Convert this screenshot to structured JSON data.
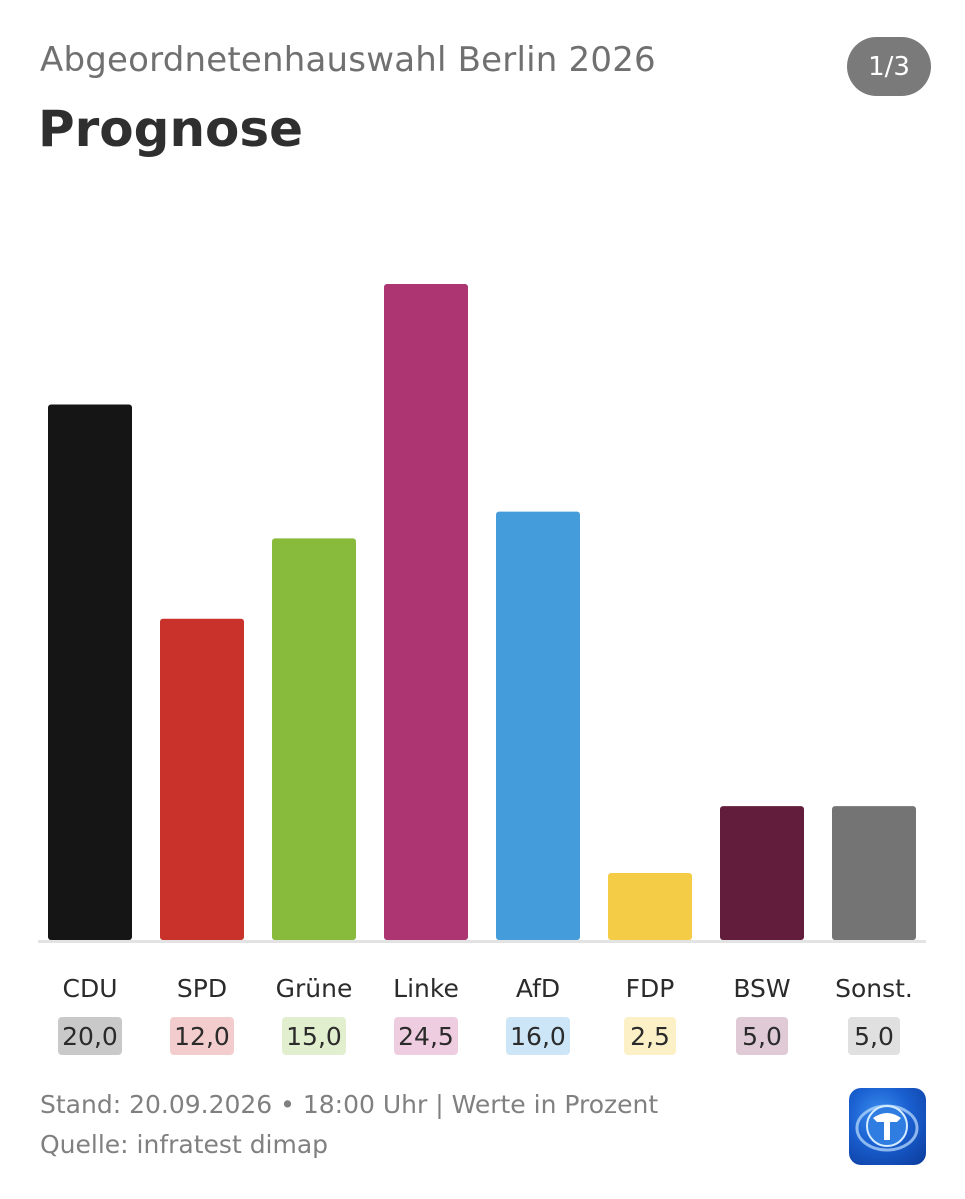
{
  "header": {
    "subtitle": "Abgeordnetenhauswahl Berlin 2026",
    "title": "Prognose",
    "pager": "1/3"
  },
  "footer": {
    "stand": "Stand: 20.09.2026 • 18:00 Uhr | Werte in Prozent",
    "source": "Quelle: infratest dimap"
  },
  "logo": {
    "icon": "tagesschau-logo-icon"
  },
  "chart_data": {
    "type": "bar",
    "categories": [
      "CDU",
      "SPD",
      "Grüne",
      "Linke",
      "AfD",
      "FDP",
      "BSW",
      "Sonst."
    ],
    "values": [
      20.0,
      12.0,
      15.0,
      24.5,
      16.0,
      2.5,
      5.0,
      5.0
    ],
    "value_labels": [
      "20,0",
      "12,0",
      "15,0",
      "24,5",
      "16,0",
      "2,5",
      "5,0",
      "5,0"
    ],
    "colors": [
      "#151515",
      "#c8322b",
      "#88ba3c",
      "#ad3572",
      "#449cdb",
      "#f5cc45",
      "#621d3c",
      "#747474"
    ],
    "badge_colors": [
      "#c9c9c9",
      "#f3cdcd",
      "#e2efcf",
      "#efcde0",
      "#cde6f7",
      "#fcf0c6",
      "#dfcad6",
      "#e0e0e0"
    ],
    "title": "Prognose",
    "xlabel": "",
    "ylabel": "",
    "ylim": [
      0,
      24.5
    ],
    "grid": false
  }
}
